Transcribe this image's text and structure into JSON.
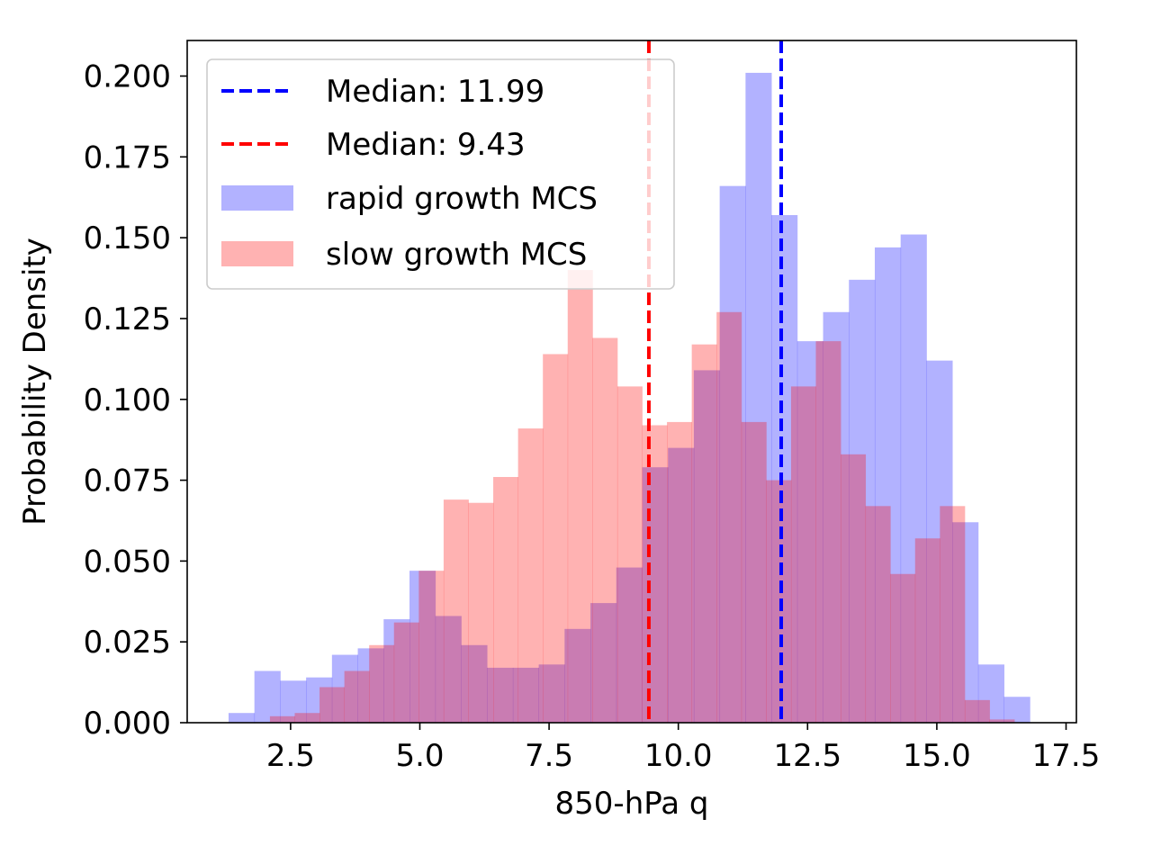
{
  "chart_data": {
    "type": "histogram",
    "title": "",
    "xlabel": "850-hPa q",
    "ylabel": "Probability Density",
    "xlim": [
      0.5,
      17.7
    ],
    "ylim": [
      0,
      0.211
    ],
    "xticks": [
      2.5,
      5.0,
      7.5,
      10.0,
      12.5,
      15.0,
      17.5
    ],
    "xtick_labels": [
      "2.5",
      "5.0",
      "7.5",
      "10.0",
      "12.5",
      "15.0",
      "17.5"
    ],
    "yticks": [
      0,
      0.025,
      0.05,
      0.075,
      0.1,
      0.125,
      0.15,
      0.175,
      0.2
    ],
    "ytick_labels": [
      "0.000",
      "0.025",
      "0.050",
      "0.075",
      "0.100",
      "0.125",
      "0.150",
      "0.175",
      "0.200"
    ],
    "grid": false,
    "legend_position": "top-left",
    "series": [
      {
        "name": "rapid growth MCS",
        "color": "#0000ff",
        "alpha": 0.3,
        "bin_start": 1.3,
        "bin_width": 0.5,
        "values": [
          0.003,
          0.016,
          0.013,
          0.014,
          0.021,
          0.023,
          0.032,
          0.047,
          0.033,
          0.024,
          0.017,
          0.017,
          0.018,
          0.029,
          0.037,
          0.048,
          0.079,
          0.085,
          0.109,
          0.166,
          0.201,
          0.157,
          0.118,
          0.127,
          0.137,
          0.147,
          0.151,
          0.112,
          0.062,
          0.018,
          0.008
        ]
      },
      {
        "name": "slow growth MCS",
        "color": "#ff0000",
        "alpha": 0.3,
        "bin_start": 2.1,
        "bin_width": 0.48,
        "values": [
          0.002,
          0.003,
          0.011,
          0.016,
          0.024,
          0.031,
          0.047,
          0.069,
          0.068,
          0.076,
          0.091,
          0.114,
          0.14,
          0.119,
          0.104,
          0.092,
          0.093,
          0.117,
          0.127,
          0.093,
          0.075,
          0.104,
          0.118,
          0.083,
          0.067,
          0.046,
          0.057,
          0.067,
          0.007,
          0.001
        ]
      }
    ],
    "medians": [
      {
        "label": "Median: 11.99",
        "value": 11.99,
        "color": "#0000ff",
        "style": "dashed"
      },
      {
        "label": "Median: 9.43",
        "value": 9.43,
        "color": "#ff0000",
        "style": "dashed"
      }
    ]
  }
}
